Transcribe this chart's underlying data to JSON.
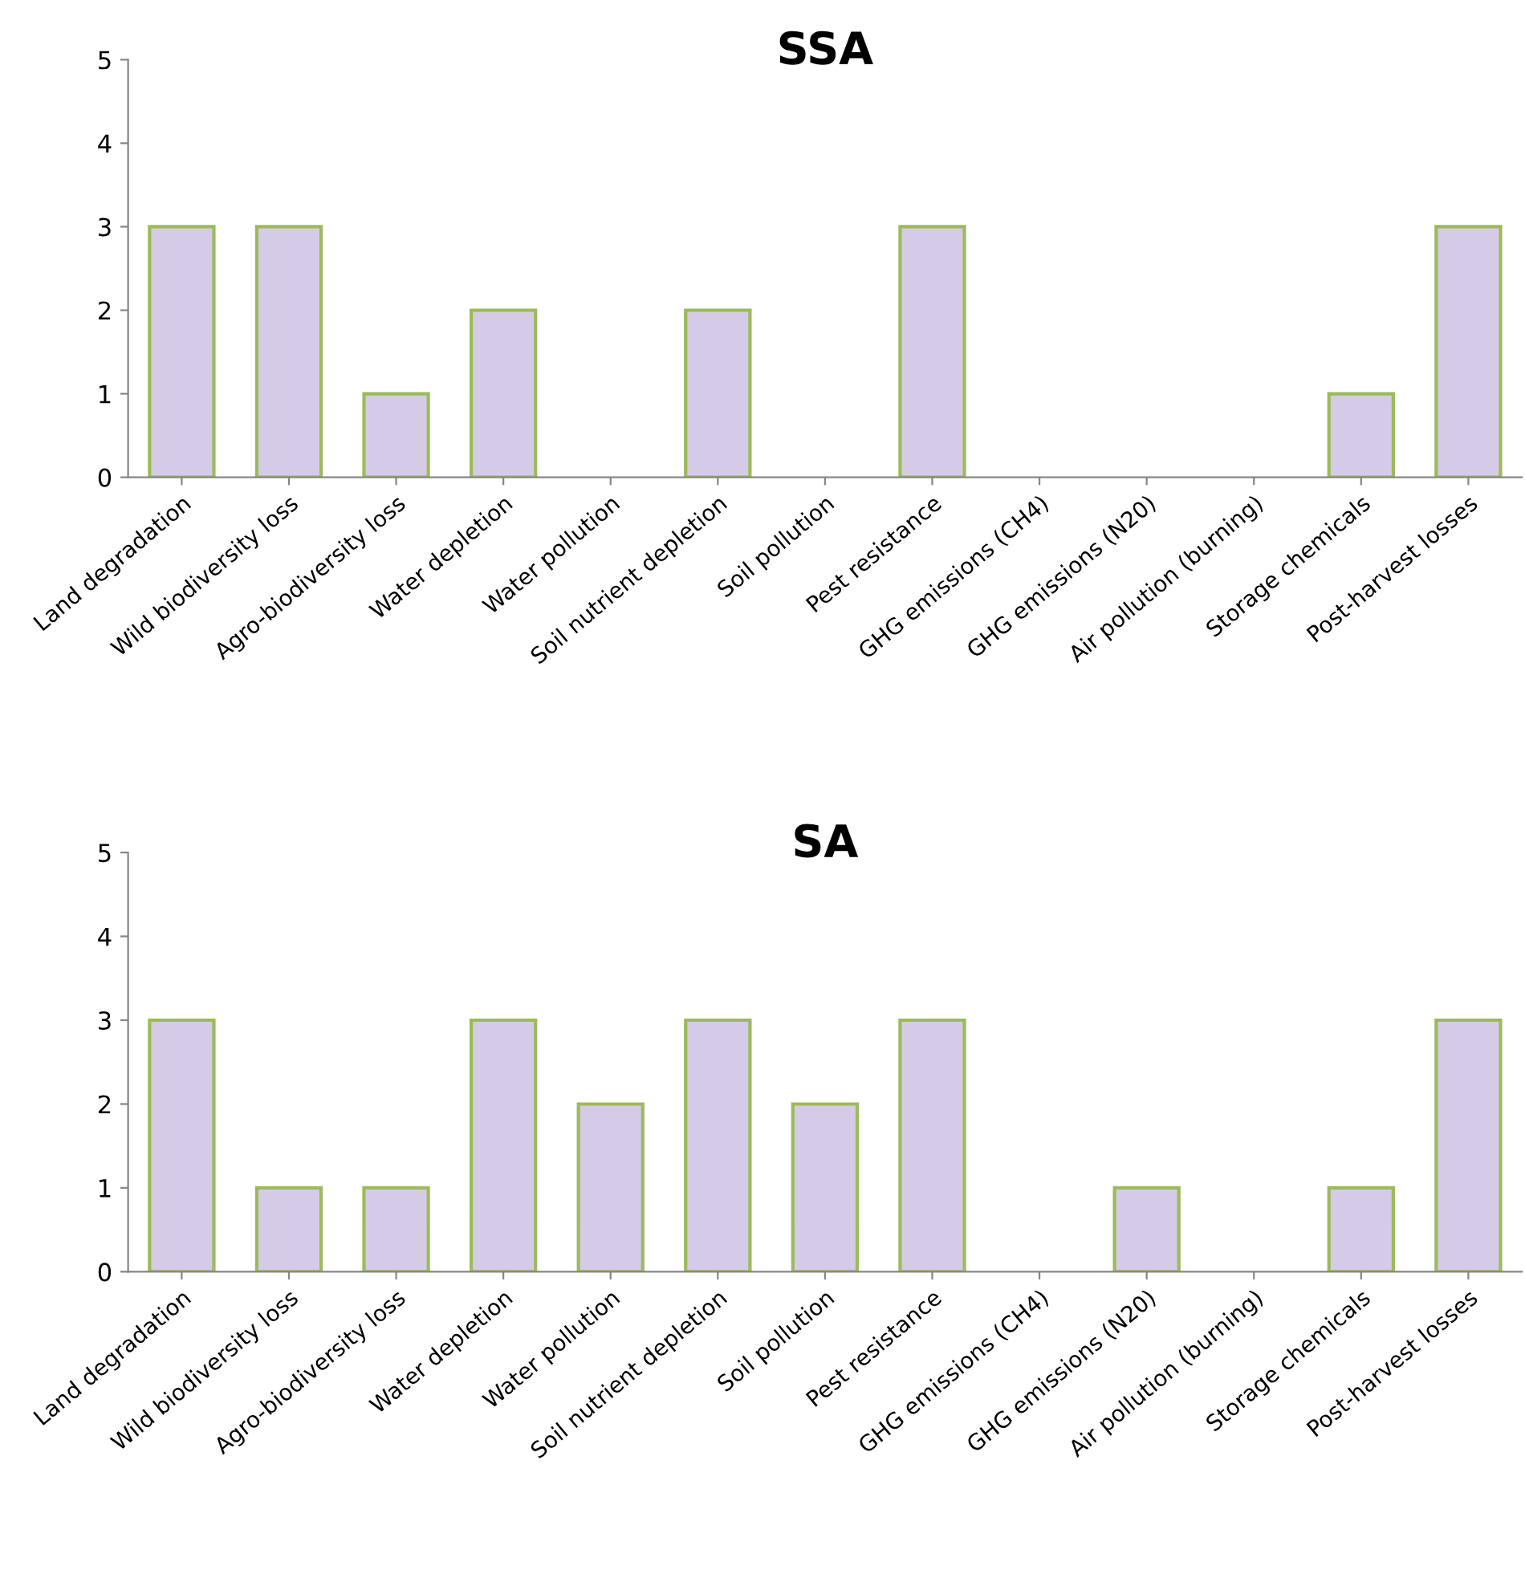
{
  "chart_data": [
    {
      "type": "bar",
      "title": "SSA",
      "categories": [
        "Land degradation",
        "Wild biodiversity loss",
        "Agro-biodiversity loss",
        "Water depletion",
        "Water pollution",
        "Soil nutrient depletion",
        "Soil pollution",
        "Pest resistance",
        "GHG emissions (CH4)",
        "GHG emissions (N20)",
        "Air pollution (burning)",
        "Storage chemicals",
        "Post-harvest losses"
      ],
      "values": [
        3,
        3,
        1,
        2,
        0,
        2,
        0,
        3,
        0,
        0,
        0,
        1,
        3
      ],
      "color": "#d5cbe6",
      "ylim": [
        0,
        5
      ],
      "yticks": [
        0,
        1,
        2,
        3,
        4,
        5
      ],
      "grid": false,
      "legend": false
    },
    {
      "type": "bar",
      "title": "SA",
      "categories": [
        "Land degradation",
        "Wild biodiversity loss",
        "Agro-biodiversity loss",
        "Water depletion",
        "Water pollution",
        "Soil nutrient depletion",
        "Soil pollution",
        "Pest resistance",
        "GHG emissions (CH4)",
        "GHG emissions (N20)",
        "Air pollution (burning)",
        "Storage chemicals",
        "Post-harvest losses"
      ],
      "values": [
        3,
        1,
        1,
        3,
        2,
        3,
        2,
        3,
        0,
        1,
        0,
        1,
        3
      ],
      "color": "#d5cbe6",
      "ylim": [
        0,
        5
      ],
      "yticks": [
        0,
        1,
        2,
        3,
        4,
        5
      ],
      "grid": false,
      "legend": false
    }
  ]
}
